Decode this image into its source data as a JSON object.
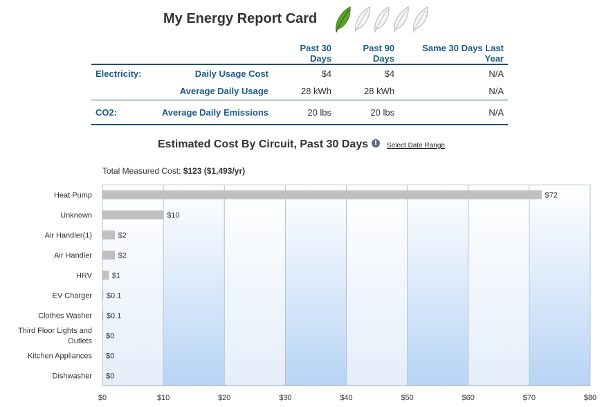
{
  "report": {
    "title": "My Energy Report Card",
    "leaf_rating": {
      "filled": 1,
      "total": 5
    }
  },
  "stats_table": {
    "columns": [
      "Past 30 Days",
      "Past 90 Days",
      "Same 30 Days Last Year"
    ],
    "rows": [
      {
        "category": "Electricity:",
        "metric": "Daily Usage Cost",
        "values": [
          "$4",
          "$4",
          "N/A"
        ]
      },
      {
        "category": "",
        "metric": "Average Daily Usage",
        "values": [
          "28 kWh",
          "28 kWh",
          "N/A"
        ]
      },
      {
        "category": "CO2:",
        "metric": "Average Daily Emissions",
        "values": [
          "20 lbs",
          "20 lbs",
          "N/A"
        ]
      }
    ]
  },
  "chart_header": {
    "title": "Estimated Cost By Circuit, Past 30 Days",
    "info_icon": "info-icon",
    "select_date_range": "Select Date Range",
    "total_label": "Total Measured Cost:",
    "total_value": "$123 ($1,493/yr)"
  },
  "colors": {
    "bar": "#c0c0c0",
    "header_text": "#1d5a86",
    "rule": "#1d4f6e",
    "leaf_green": "#5ea32b"
  },
  "chart_data": {
    "type": "bar",
    "orientation": "horizontal",
    "categories": [
      "Heat Pump",
      "Unknown",
      "Air Handler{1}",
      "Air Handler",
      "HRV",
      "EV Charger",
      "Clothes Washer",
      "Third Floor Lights and Outlets",
      "Kitchen Appliances",
      "Dishwasher"
    ],
    "category_lines": [
      [
        "Heat Pump"
      ],
      [
        "Unknown"
      ],
      [
        "Air Handler{1}"
      ],
      [
        "Air Handler"
      ],
      [
        "HRV"
      ],
      [
        "EV Charger"
      ],
      [
        "Clothes Washer"
      ],
      [
        "Third Floor Lights and",
        "Outlets"
      ],
      [
        "Kitchen Appliances"
      ],
      [
        "Dishwasher"
      ]
    ],
    "values": [
      72,
      10,
      2,
      2,
      1,
      0.1,
      0.1,
      0,
      0,
      0
    ],
    "data_labels": [
      "$72",
      "$10",
      "$2",
      "$2",
      "$1",
      "$0.1",
      "$0.1",
      "$0",
      "$0",
      "$0"
    ],
    "x_ticks": [
      "$0",
      "$10",
      "$20",
      "$30",
      "$40",
      "$50",
      "$60",
      "$70",
      "$80"
    ],
    "xlim": [
      0,
      80
    ],
    "grid": true,
    "title": "Estimated Cost By Circuit, Past 30 Days"
  }
}
